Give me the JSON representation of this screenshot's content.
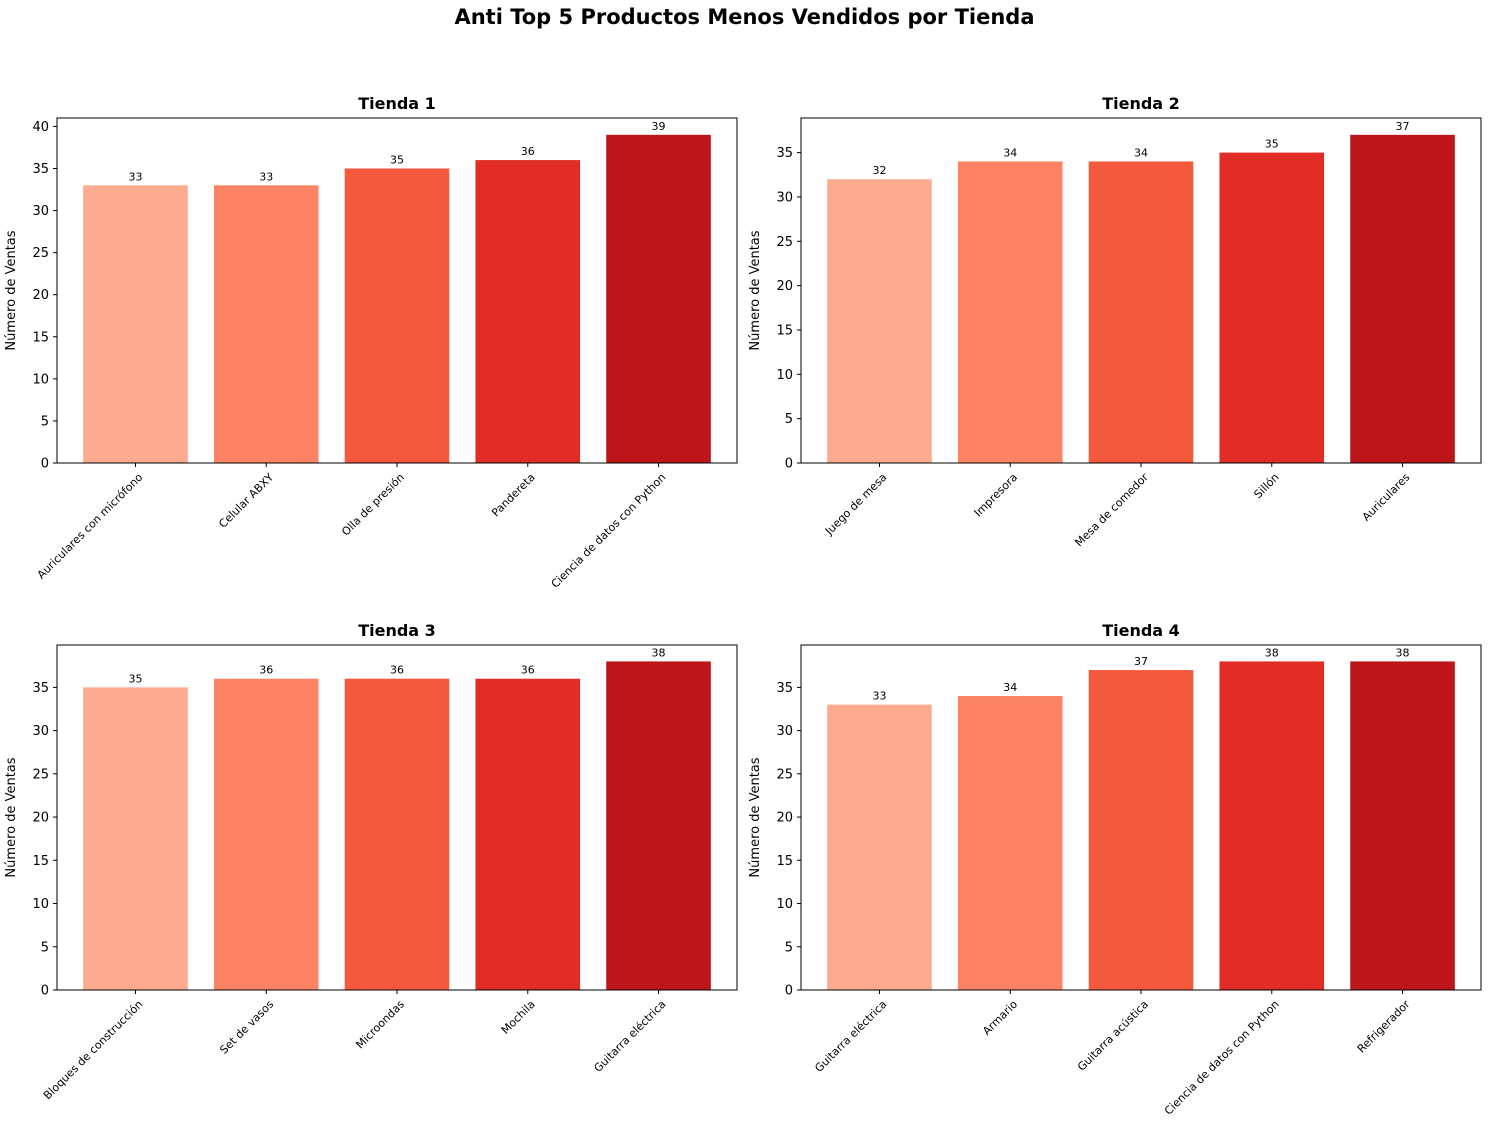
{
  "title": "Anti Top 5 Productos Menos Vendidos por Tienda",
  "chart_data": [
    {
      "type": "bar",
      "title": "Tienda 1",
      "xlabel": "",
      "ylabel": "Número de Ventas",
      "categories": [
        "Auriculares con micrófono",
        "Celular ABXY",
        "Olla de presión",
        "Pandereta",
        "Ciencia de datos con Python"
      ],
      "values": [
        33,
        33,
        35,
        36,
        39
      ],
      "ylim": [
        0,
        41
      ],
      "yticks": [
        0,
        5,
        10,
        15,
        20,
        25,
        30,
        35,
        40
      ],
      "bar_colors": [
        "#fcab8f",
        "#fc8464",
        "#f5593d",
        "#e12d26",
        "#bc151a"
      ],
      "grid": false
    },
    {
      "type": "bar",
      "title": "Tienda 2",
      "xlabel": "",
      "ylabel": "Número de Ventas",
      "categories": [
        "Juego de mesa",
        "Impresora",
        "Mesa de comedor",
        "Sillón",
        "Auriculares"
      ],
      "values": [
        32,
        34,
        34,
        35,
        37
      ],
      "ylim": [
        0,
        38.9
      ],
      "yticks": [
        0,
        5,
        10,
        15,
        20,
        25,
        30,
        35
      ],
      "bar_colors": [
        "#fcab8f",
        "#fc8464",
        "#f5593d",
        "#e12d26",
        "#bc151a"
      ],
      "grid": false
    },
    {
      "type": "bar",
      "title": "Tienda 3",
      "xlabel": "",
      "ylabel": "Número de Ventas",
      "categories": [
        "Bloques de construcción",
        "Set de vasos",
        "Microondas",
        "Mochila",
        "Guitarra eléctrica"
      ],
      "values": [
        35,
        36,
        36,
        36,
        38
      ],
      "ylim": [
        0,
        39.9
      ],
      "yticks": [
        0,
        5,
        10,
        15,
        20,
        25,
        30,
        35
      ],
      "bar_colors": [
        "#fcab8f",
        "#fc8464",
        "#f5593d",
        "#e12d26",
        "#bc151a"
      ],
      "grid": false
    },
    {
      "type": "bar",
      "title": "Tienda 4",
      "xlabel": "",
      "ylabel": "Número de Ventas",
      "categories": [
        "Guitarra eléctrica",
        "Armario",
        "Guitarra acústica",
        "Ciencia de datos con Python",
        "Refrigerador"
      ],
      "values": [
        33,
        34,
        37,
        38,
        38
      ],
      "ylim": [
        0,
        39.9
      ],
      "yticks": [
        0,
        5,
        10,
        15,
        20,
        25,
        30,
        35
      ],
      "bar_colors": [
        "#fcab8f",
        "#fc8464",
        "#f5593d",
        "#e12d26",
        "#bc151a"
      ],
      "grid": false
    }
  ]
}
